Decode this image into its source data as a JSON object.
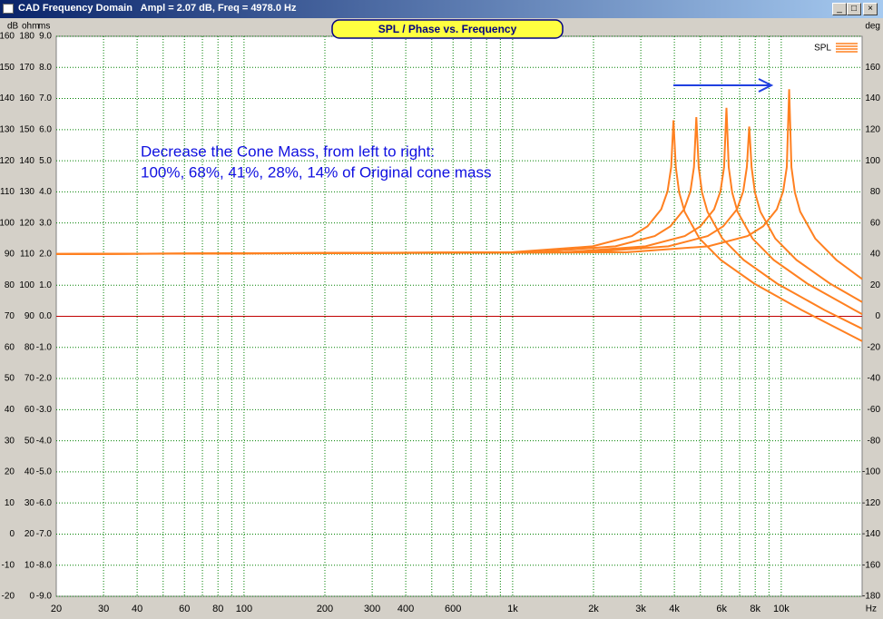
{
  "window": {
    "title": "CAD Frequency Domain   Ampl = 2.07 dB, Freq = 4978.0 Hz"
  },
  "chart_data": {
    "type": "line",
    "title": "SPL / Phase vs. Frequency",
    "annotations": [
      "Decrease the Cone Mass, from left to right:",
      "100%, 68%, 41%, 28%, 14% of Original cone mass"
    ],
    "x_unit": "Hz",
    "y_units": [
      "dB",
      "ohm",
      "ms"
    ],
    "y2_unit": "deg",
    "log_x": true,
    "grid": true,
    "grid_color": "#008000",
    "legend": "top-right",
    "legend_label": "SPL",
    "xlim": [
      20,
      20000
    ],
    "xticks": [
      20,
      30,
      40,
      60,
      80,
      100,
      200,
      300,
      400,
      600,
      {
        "value": 1000,
        "label": "1k"
      },
      {
        "value": 2000,
        "label": "2k"
      },
      {
        "value": 3000,
        "label": "3k"
      },
      {
        "value": 4000,
        "label": "4k"
      },
      {
        "value": 6000,
        "label": "6k"
      },
      {
        "value": 8000,
        "label": "8k"
      },
      {
        "value": 10000,
        "label": "10k"
      }
    ],
    "xgrid": [
      30,
      40,
      50,
      60,
      70,
      80,
      90,
      100,
      200,
      300,
      400,
      500,
      600,
      700,
      800,
      900,
      1000,
      2000,
      3000,
      4000,
      5000,
      6000,
      7000,
      8000,
      9000,
      10000
    ],
    "ylim": [
      -20,
      160
    ],
    "yticks": [
      -20,
      -10,
      0,
      10,
      20,
      30,
      40,
      50,
      60,
      70,
      80,
      90,
      100,
      110,
      120,
      130,
      140,
      150,
      160
    ],
    "ohm_lim": [
      0,
      180
    ],
    "ohm_ticks": [
      0,
      10,
      20,
      30,
      40,
      50,
      60,
      70,
      80,
      90,
      100,
      110,
      120,
      130,
      140,
      150,
      160,
      170,
      180
    ],
    "ms_lim": [
      -9,
      9
    ],
    "ms_ticks": [
      {
        "value": -9,
        "label": "-9.0"
      },
      {
        "value": -8,
        "label": "-8.0"
      },
      {
        "value": -7,
        "label": "-7.0"
      },
      {
        "value": -6,
        "label": "-6.0"
      },
      {
        "value": -5,
        "label": "-5.0"
      },
      {
        "value": -4,
        "label": "-4.0"
      },
      {
        "value": -3,
        "label": "-3.0"
      },
      {
        "value": -2,
        "label": "-2.0"
      },
      {
        "value": -1,
        "label": "-1.0"
      },
      {
        "value": 0,
        "label": "0.0"
      },
      {
        "value": 1,
        "label": "1.0"
      },
      {
        "value": 2,
        "label": "2.0"
      },
      {
        "value": 3,
        "label": "3.0"
      },
      {
        "value": 4,
        "label": "4.0"
      },
      {
        "value": 5,
        "label": "5.0"
      },
      {
        "value": 6,
        "label": "6.0"
      },
      {
        "value": 7,
        "label": "7.0"
      },
      {
        "value": 8,
        "label": "8.0"
      },
      {
        "value": 9,
        "label": "9.0"
      }
    ],
    "y2lim": [
      -180,
      180
    ],
    "y2ticks": [
      -180,
      -160,
      -140,
      -120,
      -100,
      -80,
      -60,
      -40,
      -20,
      0,
      20,
      40,
      60,
      80,
      100,
      120,
      140,
      160
    ],
    "reference_y": 70,
    "reference_color": "#c00000",
    "series": [
      {
        "color": "#ff8020",
        "x": [
          20,
          993,
          1985,
          2779,
          3176,
          3573,
          3772,
          3891,
          3970,
          4049,
          4169,
          4367,
          4963,
          5955,
          7940,
          11910,
          20000
        ],
        "values": [
          90,
          90.6,
          92.5,
          95.8,
          98.9,
          104.4,
          110.2,
          118,
          133,
          117.9,
          109.8,
          103.6,
          95,
          88.1,
          80.5,
          72,
          62
        ]
      },
      {
        "color": "#ff8020",
        "x": [
          20,
          1208,
          2415,
          3381,
          3864,
          4347,
          4589,
          4733,
          4830,
          4927,
          5072,
          5313,
          6038,
          7245,
          9660,
          14490,
          20000
        ],
        "values": [
          90,
          90.6,
          92.5,
          95.8,
          98.9,
          104.4,
          110.2,
          118,
          134,
          117.9,
          109.8,
          103.6,
          95,
          88.1,
          80.5,
          72,
          66
        ]
      },
      {
        "color": "#ff8020",
        "x": [
          20,
          1563,
          3125,
          4375,
          5000,
          5625,
          5938,
          6125,
          6250,
          6375,
          6563,
          6875,
          7813,
          9375,
          12500,
          18750,
          20000
        ],
        "values": [
          90,
          90.6,
          92.5,
          95.8,
          98.9,
          104.4,
          110.2,
          118,
          137,
          117.9,
          109.8,
          103.6,
          95,
          88.1,
          80.5,
          72,
          70.7
        ]
      },
      {
        "color": "#ff8020",
        "x": [
          20,
          1900,
          3800,
          5320,
          6080,
          6840,
          7220,
          7448,
          7600,
          7752,
          7980,
          8360,
          9500,
          11400,
          15200,
          20000
        ],
        "values": [
          90,
          90.6,
          92.5,
          95.8,
          98.9,
          104.4,
          110.2,
          118,
          131,
          117.9,
          109.8,
          103.6,
          95,
          88.1,
          80.5,
          74.6
        ]
      },
      {
        "color": "#ff8020",
        "x": [
          20,
          2675,
          5350,
          7490,
          8560,
          9630,
          10165,
          10486,
          10700,
          10914,
          11235,
          11770,
          13375,
          16050,
          20000
        ],
        "values": [
          90,
          90.6,
          92.5,
          95.8,
          98.9,
          104.4,
          110.2,
          118,
          143,
          117.9,
          109.8,
          103.6,
          95,
          88.1,
          82
        ]
      }
    ]
  }
}
